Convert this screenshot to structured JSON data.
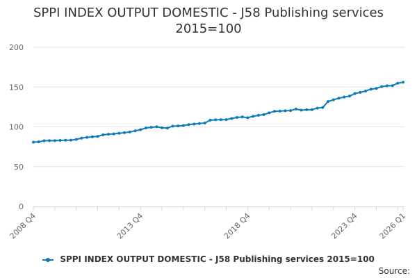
{
  "chart_data": {
    "type": "line",
    "title": "SPPI INDEX OUTPUT DOMESTIC - J58 Publishing services 2015=100",
    "title_lines": [
      "SPPI INDEX OUTPUT DOMESTIC - J58 Publishing services",
      "2015=100"
    ],
    "xlabel": "",
    "ylabel": "",
    "ylim": [
      0,
      200
    ],
    "yticks": [
      "0",
      "50",
      "100",
      "150",
      "200"
    ],
    "xticks": [
      "2008 Q4",
      "2013 Q4",
      "2018 Q4",
      "2023 Q4",
      "2026 Q1"
    ],
    "grid": true,
    "legend_position": "bottom",
    "color": "#0a7ab8",
    "x": [
      "2008 Q4",
      "2009 Q1",
      "2009 Q2",
      "2009 Q3",
      "2009 Q4",
      "2010 Q1",
      "2010 Q2",
      "2010 Q3",
      "2010 Q4",
      "2011 Q1",
      "2011 Q2",
      "2011 Q3",
      "2011 Q4",
      "2012 Q1",
      "2012 Q2",
      "2012 Q3",
      "2012 Q4",
      "2013 Q1",
      "2013 Q2",
      "2013 Q3",
      "2013 Q4",
      "2014 Q1",
      "2014 Q2",
      "2014 Q3",
      "2014 Q4",
      "2015 Q1",
      "2015 Q2",
      "2015 Q3",
      "2015 Q4",
      "2016 Q1",
      "2016 Q2",
      "2016 Q3",
      "2016 Q4",
      "2017 Q1",
      "2017 Q2",
      "2017 Q3",
      "2017 Q4",
      "2018 Q1",
      "2018 Q2",
      "2018 Q3",
      "2018 Q4",
      "2019 Q1",
      "2019 Q2",
      "2019 Q3",
      "2019 Q4",
      "2020 Q1",
      "2020 Q2",
      "2020 Q3",
      "2020 Q4",
      "2021 Q1",
      "2021 Q2",
      "2021 Q3",
      "2021 Q4",
      "2022 Q1",
      "2022 Q2",
      "2022 Q3",
      "2022 Q4",
      "2023 Q1",
      "2023 Q2",
      "2023 Q3",
      "2023 Q4",
      "2024 Q1",
      "2024 Q2",
      "2024 Q3",
      "2024 Q4",
      "2025 Q1",
      "2025 Q2",
      "2025 Q3",
      "2025 Q4",
      "2026 Q1"
    ],
    "series": [
      {
        "name": "SPPI INDEX OUTPUT DOMESTIC - J58 Publishing services 2015=100",
        "values": [
          80.8,
          81.1,
          82.5,
          82.6,
          82.6,
          83.0,
          83.2,
          83.3,
          84.2,
          85.8,
          86.8,
          87.4,
          88.0,
          90.0,
          90.7,
          91.2,
          91.9,
          92.7,
          93.6,
          95.0,
          96.4,
          98.6,
          99.4,
          100.1,
          98.8,
          98.4,
          100.9,
          101.1,
          101.6,
          102.8,
          103.5,
          104.2,
          104.8,
          108.4,
          108.8,
          108.9,
          109.1,
          110.5,
          111.8,
          112.4,
          111.5,
          113.2,
          114.5,
          115.4,
          117.6,
          119.5,
          119.8,
          120.2,
          120.4,
          122.4,
          121.0,
          121.5,
          121.6,
          123.5,
          124.3,
          131.8,
          134.0,
          136.0,
          137.4,
          138.6,
          141.8,
          143.3,
          145.0,
          147.3,
          148.3,
          150.6,
          151.5,
          151.8,
          154.8,
          156.0
        ]
      }
    ]
  },
  "legend": {
    "label": "SPPI INDEX OUTPUT DOMESTIC - J58 Publishing services 2015=100"
  },
  "source": {
    "label": "Source:"
  }
}
